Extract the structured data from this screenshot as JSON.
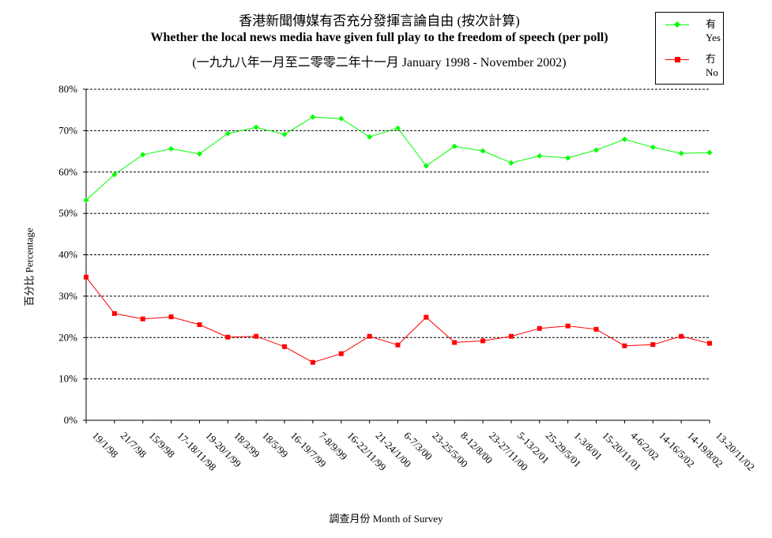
{
  "titles": {
    "line1": "香港新聞傳媒有否充分發揮言論自由 (按次計算)",
    "line2": "Whether the local news media have given full play to the freedom of speech (per poll)",
    "line3": "(一九九八年一月至二零零二年十一月 January 1998 - November 2002)"
  },
  "legend": {
    "yes_zh": "有",
    "yes_en": "Yes",
    "no_zh": "冇",
    "no_en": "No"
  },
  "axes": {
    "ylabel": "百分比 Percentage",
    "xlabel": "調查月份 Month of Survey"
  },
  "colors": {
    "yes": "#00ff00",
    "no": "#ff0000",
    "grid": "#000000"
  },
  "chart_data": {
    "type": "line",
    "title": "香港新聞傳媒有否充分發揮言論自由 (按次計算)",
    "xlabel": "調查月份 Month of Survey",
    "ylabel": "百分比 Percentage",
    "ylim": [
      0,
      80
    ],
    "yticks": [
      "0%",
      "10%",
      "20%",
      "30%",
      "40%",
      "50%",
      "60%",
      "70%",
      "80%"
    ],
    "grid": "horizontal dashed",
    "legend_position": "top-right",
    "categories": [
      "19/1/98",
      "21/7/98",
      "15/9/98",
      "17-18/11/98",
      "19-20/1/99",
      "18/3/99",
      "18/5/99",
      "16-19/7/99",
      "7-8/9/99",
      "16-22/11/99",
      "21-24/1/00",
      "6-7/3/00",
      "23-25/5/00",
      "8-12/8/00",
      "23-27/11/00",
      "5-13/2/01",
      "25-29/5/01",
      "1-3/8/01",
      "15-20/11/01",
      "4-6/2/02",
      "14-16/5/02",
      "14-19/8/02",
      "13-20/11/02"
    ],
    "series": [
      {
        "name": "有 Yes",
        "color": "#00ff00",
        "marker": "diamond",
        "values": [
          53.2,
          59.4,
          64.2,
          65.6,
          64.4,
          69.3,
          70.8,
          69.1,
          73.3,
          72.9,
          68.5,
          70.6,
          61.5,
          66.2,
          65.1,
          62.2,
          63.9,
          63.4,
          65.3,
          67.9,
          66.0,
          64.5,
          64.7
        ]
      },
      {
        "name": "冇 No",
        "color": "#ff0000",
        "marker": "square",
        "values": [
          34.6,
          25.8,
          24.5,
          25.0,
          23.1,
          20.1,
          20.3,
          17.8,
          14.0,
          16.1,
          20.3,
          18.2,
          24.9,
          18.8,
          19.2,
          20.3,
          22.2,
          22.8,
          22.0,
          18.0,
          18.3,
          20.3,
          18.6
        ]
      }
    ]
  }
}
